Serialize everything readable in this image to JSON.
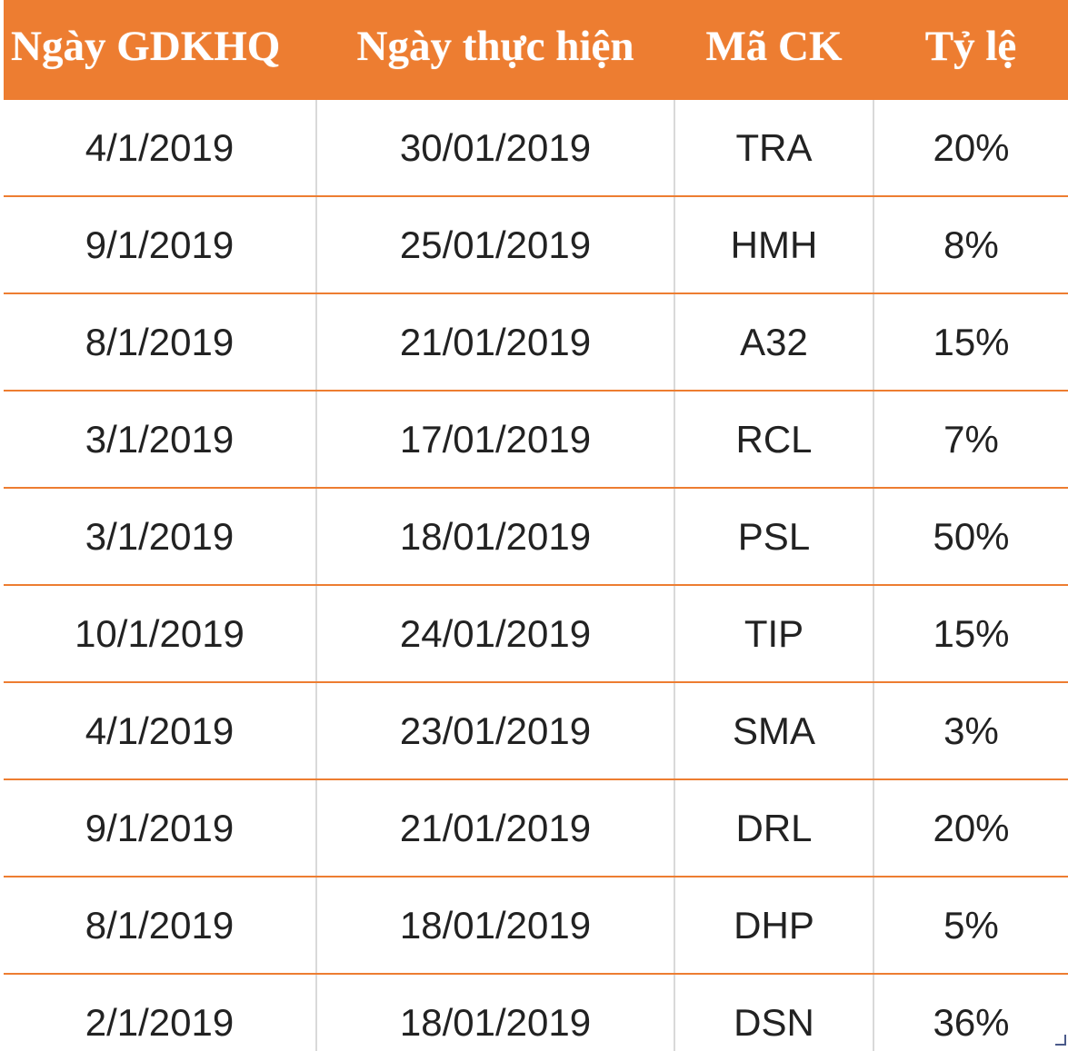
{
  "table": {
    "headers": [
      "Ngày GDKHQ",
      "Ngày thực hiện",
      "Mã CK",
      "Tỷ lệ"
    ],
    "rows": [
      [
        "4/1/2019",
        "30/01/2019",
        "TRA",
        "20%"
      ],
      [
        "9/1/2019",
        "25/01/2019",
        "HMH",
        "8%"
      ],
      [
        "8/1/2019",
        "21/01/2019",
        "A32",
        "15%"
      ],
      [
        "3/1/2019",
        "17/01/2019",
        "RCL",
        "7%"
      ],
      [
        "3/1/2019",
        "18/01/2019",
        "PSL",
        "50%"
      ],
      [
        "10/1/2019",
        "24/01/2019",
        "TIP",
        "15%"
      ],
      [
        "4/1/2019",
        "23/01/2019",
        "SMA",
        "3%"
      ],
      [
        "9/1/2019",
        "21/01/2019",
        "DRL",
        "20%"
      ],
      [
        "8/1/2019",
        "18/01/2019",
        "DHP",
        "5%"
      ],
      [
        "2/1/2019",
        "18/01/2019",
        "DSN",
        "36%"
      ]
    ]
  },
  "colors": {
    "header_bg": "#ED7D31",
    "header_text": "#FFFFFF",
    "row_divider": "#ED7D31"
  }
}
